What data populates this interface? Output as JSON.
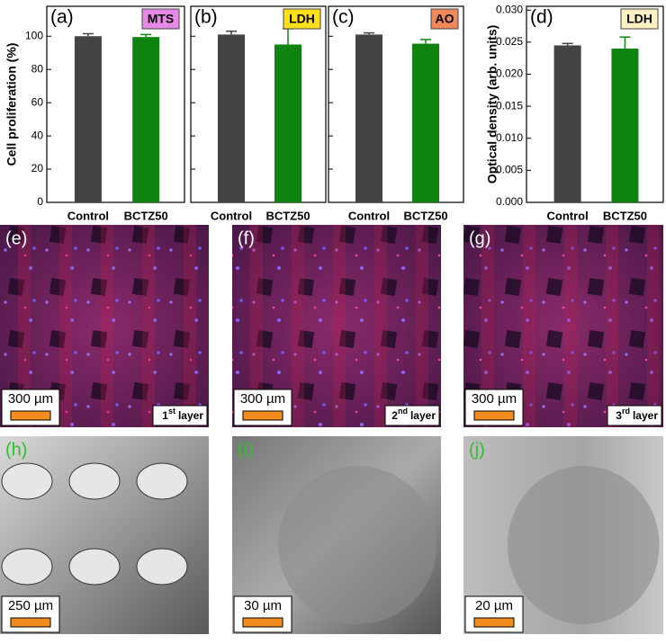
{
  "chart_data": [
    {
      "type": "bar",
      "panel": "(a)",
      "badge": "MTS",
      "badge_color": "#e58ae6",
      "ylabel": "Cell proliferation (%)",
      "categories": [
        "Control",
        "BCTZ50"
      ],
      "values": [
        100,
        99.5
      ],
      "errors": [
        1.5,
        1.5
      ],
      "colors": [
        "#434343",
        "#0f830f"
      ],
      "ylim": [
        0,
        118
      ],
      "yticks": [
        0,
        20,
        40,
        60,
        80,
        100
      ],
      "show_tick_labels": true
    },
    {
      "type": "bar",
      "panel": "(b)",
      "badge": "LDH",
      "badge_color": "#ffe01a",
      "categories": [
        "Control",
        "BCTZ50"
      ],
      "values": [
        101,
        95
      ],
      "errors": [
        2,
        9.5
      ],
      "colors": [
        "#434343",
        "#0f830f"
      ],
      "ylim": [
        0,
        118
      ],
      "yticks": [
        0,
        20,
        40,
        60,
        80,
        100
      ],
      "show_tick_labels": false
    },
    {
      "type": "bar",
      "panel": "(c)",
      "badge": "AO",
      "badge_color": "#f2875a",
      "categories": [
        "Control",
        "BCTZ50"
      ],
      "values": [
        101,
        95.5
      ],
      "errors": [
        1,
        2.5
      ],
      "colors": [
        "#434343",
        "#0f830f"
      ],
      "ylim": [
        0,
        118
      ],
      "yticks": [
        0,
        20,
        40,
        60,
        80,
        100
      ],
      "show_tick_labels": false
    },
    {
      "type": "bar",
      "panel": "(d)",
      "badge": "LDH",
      "badge_color": "#fff1c4",
      "ylabel": "Optical density (arb. units)",
      "categories": [
        "Control",
        "BCTZ50"
      ],
      "values": [
        0.0245,
        0.024
      ],
      "errors": [
        0.0003,
        0.0018
      ],
      "colors": [
        "#434343",
        "#0f830f"
      ],
      "ylim": [
        0,
        0.0306
      ],
      "yticks": [
        {
          "value": 0,
          "label": "0.000"
        },
        {
          "value": 0.005,
          "label": "0.005"
        },
        {
          "value": 0.01,
          "label": "0.010"
        },
        {
          "value": 0.015,
          "label": "0.015"
        },
        {
          "value": 0.02,
          "label": "0.020"
        },
        {
          "value": 0.025,
          "label": "0.025"
        },
        {
          "value": 0.03,
          "label": "0.030"
        }
      ],
      "show_tick_labels": true
    }
  ],
  "image_panels": [
    {
      "label": "(e)",
      "scale": "300 µm",
      "layer": {
        "number": "1",
        "suffix": "st",
        "word": "layer"
      }
    },
    {
      "label": "(f)",
      "scale": "300 µm",
      "layer": {
        "number": "2",
        "suffix": "nd",
        "word": "layer"
      }
    },
    {
      "label": "(g)",
      "scale": "300 µm",
      "layer": {
        "number": "3",
        "suffix": "rd",
        "word": "layer"
      }
    },
    {
      "label": "(h)",
      "scale": "250 µm"
    },
    {
      "label": "(i)",
      "scale": "30 µm"
    },
    {
      "label": "(j)",
      "scale": "20 µm"
    }
  ]
}
